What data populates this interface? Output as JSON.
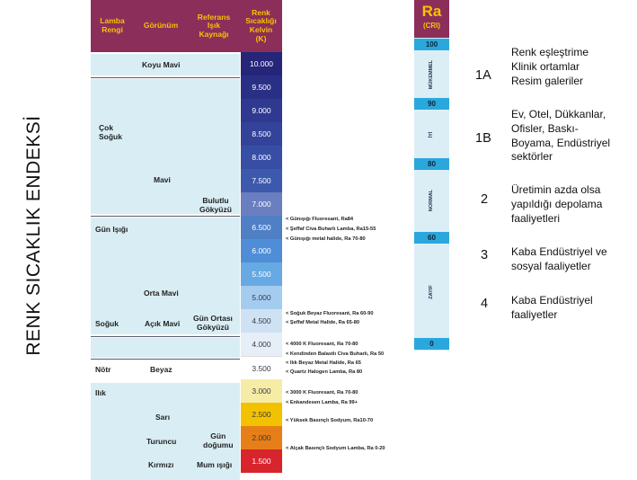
{
  "title": "RENK SICAKLIK ENDEKSİ",
  "header": {
    "lamp_color": "Lamba\nRengi",
    "appearance": "Görünüm",
    "reference": "Referans\nIşık\nKaynağı",
    "kelvin": "Renk\nSıcaklığı\nKelvin\n(K)"
  },
  "left_labels": [
    "Çok\nSoğuk",
    "Gün Işığı",
    "Soğuk",
    "Nötr",
    "Ilık"
  ],
  "appearance_labels": [
    "Koyu Mavi",
    "Mavi",
    "Orta Mavi",
    "Açık Mavi",
    "Beyaz",
    "Sarı",
    "Turuncu",
    "Kırmızı"
  ],
  "reference_labels": [
    "Bulutlu\nGökyüzü",
    "Gün Ortası\nGökyüzü",
    "Gün\ndoğumu",
    "Mum ışığı"
  ],
  "kelvin_values": [
    "10.000",
    "9.500",
    "9.000",
    "8.500",
    "8.000",
    "7.500",
    "7.000",
    "6.500",
    "6.000",
    "5.500",
    "5.000",
    "4.500",
    "4.000",
    "3.500",
    "3.000",
    "2.500",
    "2.000",
    "1.500"
  ],
  "kelvin_colors": [
    "#25257a",
    "#2a2f86",
    "#2f3990",
    "#33439a",
    "#384ea4",
    "#3d59ad",
    "#6a7ec0",
    "#4f7fc5",
    "#4f8ed6",
    "#66a9e3",
    "#a4ccef",
    "#cfe2f4",
    "#e6eef7",
    "#ffffff",
    "#f6eca6",
    "#f2c200",
    "#e67f17",
    "#d8242c"
  ],
  "light_sources": [
    "< Günışığı Fluoresant, Ra84",
    "< Şeffaf Civa Buharlı Lamba, Ra15-55",
    "< Günışığı metal halide, Ra 70-80",
    "< Soğuk Beyaz Fluoresant, Ra 60-90",
    "< Şeffaf Metal Halide, Ra 65-80",
    "< 4000 K Fluoresant, Ra 70-80",
    "< Kendinden Balastlı Civa Buharlı, Ra 50",
    "< Ilık Beyaz Metal Halide, Ra 65",
    "< Quartz Halogen Lamba, Ra 80",
    "< 3000 K Fluoresant, Ra 70-80",
    "< Enkandesen Lamba, Ra 99+",
    "< Yüksek Basınçlı Sodyum, Ra10-70",
    "< Alçak Basınçlı Sodyum Lamba, Ra 0-20"
  ],
  "ra": {
    "title": "Ra",
    "subtitle": "(CRI)",
    "marks": [
      "100",
      "90",
      "80",
      "60",
      "0"
    ],
    "bands": [
      "MÜKEMMEL",
      "İYİ",
      "NORMAL",
      "ZAYIF"
    ]
  },
  "categories": [
    {
      "id": "1A",
      "text": "Renk eşleştrime\nKlinik ortamlar\nResim galeriler"
    },
    {
      "id": "1B",
      "text": "Ev, Otel, Dükkanlar,\nOfisler, Baskı-\nBoyama, Endüstriyel\nsektörler"
    },
    {
      "id": "2",
      "text": "Üretimin azda olsa\nyapıldığı depolama\nfaaliyetleri"
    },
    {
      "id": "3",
      "text": "Kaba Endüstriyel ve\nsosyal faaliyetler"
    },
    {
      "id": "4",
      "text": "Kaba Endüstriyel\nfaaliyetler"
    }
  ]
}
